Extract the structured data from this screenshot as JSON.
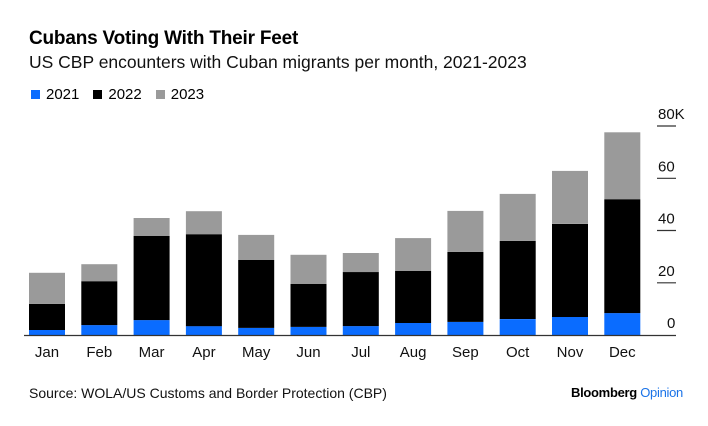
{
  "header": {
    "title": "Cubans Voting With Their Feet",
    "subtitle": "US CBP encounters with Cuban migrants per month, 2021-2023"
  },
  "footer": {
    "source": "Source: WOLA/US Customs and Border Protection (CBP)",
    "brand_main": "Bloomberg",
    "brand_accent": "Opinion"
  },
  "colors": {
    "2021": "#0a6cff",
    "2022": "#000000",
    "2023": "#9a9a9a",
    "brand_accent": "#1a73e8"
  },
  "chart_data": {
    "type": "bar",
    "stacked": true,
    "title": "Cubans Voting With Their Feet",
    "subtitle": "US CBP encounters with Cuban migrants per month, 2021-2023",
    "xlabel": "",
    "ylabel": "",
    "ylim": [
      0,
      80
    ],
    "y_unit": "K",
    "yticks": [
      0,
      20,
      40,
      60,
      80
    ],
    "ytick_labels": [
      "0",
      "20",
      "40",
      "60",
      "80K"
    ],
    "y_axis_position": "right",
    "grid": false,
    "legend_position": "top-left",
    "categories": [
      "Jan",
      "Feb",
      "Mar",
      "Apr",
      "May",
      "Jun",
      "Jul",
      "Aug",
      "Sep",
      "Oct",
      "Nov",
      "Dec"
    ],
    "series": [
      {
        "name": "2021",
        "color": "#0a6cff",
        "values": [
          1.9,
          3.8,
          5.7,
          3.4,
          2.7,
          3.1,
          3.4,
          4.6,
          5.0,
          6.1,
          6.9,
          8.4
        ]
      },
      {
        "name": "2022",
        "color": "#000000",
        "values": [
          10.0,
          16.8,
          32.2,
          35.2,
          26.0,
          16.5,
          20.7,
          19.9,
          26.8,
          29.9,
          35.6,
          43.6
        ]
      },
      {
        "name": "2023",
        "color": "#9a9a9a",
        "values": [
          11.9,
          6.5,
          6.9,
          8.8,
          9.6,
          11.1,
          7.3,
          12.6,
          15.7,
          18.0,
          20.3,
          25.6
        ]
      }
    ]
  }
}
